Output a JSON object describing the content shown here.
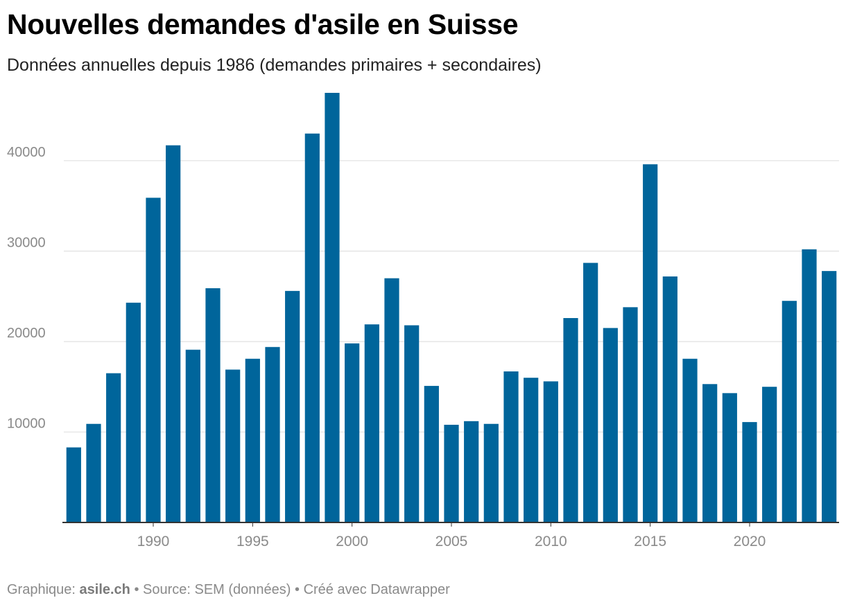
{
  "title": "Nouvelles demandes d'asile en Suisse",
  "subtitle": "Données annuelles depuis 1986 (demandes primaires + secondaires)",
  "footer": {
    "prefix": "Graphique: ",
    "credit": "asile.ch",
    "rest": " • Source: SEM (données) • Créé avec Datawrapper"
  },
  "colors": {
    "bar": "#00659b",
    "grid": "#e3e3e3",
    "baseline": "#333333",
    "tick_text": "#8a8a8a"
  },
  "chart_data": {
    "type": "bar",
    "title": "Nouvelles demandes d'asile en Suisse",
    "subtitle": "Données annuelles depuis 1986 (demandes primaires + secondaires)",
    "xlabel": "",
    "ylabel": "",
    "ylim": [
      0,
      47500
    ],
    "yticks": [
      10000,
      20000,
      30000,
      40000
    ],
    "xticks": [
      1990,
      1995,
      2000,
      2005,
      2010,
      2015,
      2020
    ],
    "categories": [
      1986,
      1987,
      1988,
      1989,
      1990,
      1991,
      1992,
      1993,
      1994,
      1995,
      1996,
      1997,
      1998,
      1999,
      2000,
      2001,
      2002,
      2003,
      2004,
      2005,
      2006,
      2007,
      2008,
      2009,
      2010,
      2011,
      2012,
      2013,
      2014,
      2015,
      2016,
      2017,
      2018,
      2019,
      2020,
      2021,
      2022,
      2023,
      2024
    ],
    "values": [
      8300,
      10900,
      16500,
      24300,
      35900,
      41700,
      19100,
      25900,
      16900,
      18100,
      19400,
      25600,
      43000,
      47500,
      19800,
      21900,
      27000,
      21800,
      15100,
      10800,
      11200,
      10900,
      16700,
      16000,
      15600,
      22600,
      28700,
      21500,
      23800,
      39600,
      27200,
      18100,
      15300,
      14300,
      11100,
      15000,
      24500,
      30200,
      27800
    ],
    "grid": true,
    "legend": "none"
  }
}
